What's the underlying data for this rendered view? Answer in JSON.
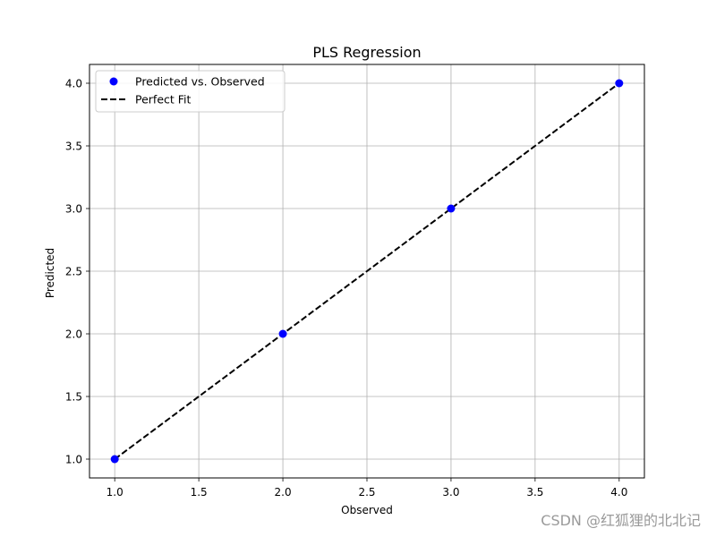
{
  "chart_data": {
    "type": "scatter",
    "title": "PLS Regression",
    "xlabel": "Observed",
    "ylabel": "Predicted",
    "xlim": [
      0.85,
      4.15
    ],
    "ylim": [
      0.85,
      4.15
    ],
    "xticks": [
      1.0,
      1.5,
      2.0,
      2.5,
      3.0,
      3.5,
      4.0
    ],
    "yticks": [
      1.0,
      1.5,
      2.0,
      2.5,
      3.0,
      3.5,
      4.0
    ],
    "xtick_labels": [
      "1.0",
      "1.5",
      "2.0",
      "2.5",
      "3.0",
      "3.5",
      "4.0"
    ],
    "ytick_labels": [
      "1.0",
      "1.5",
      "2.0",
      "2.5",
      "3.0",
      "3.5",
      "4.0"
    ],
    "grid": true,
    "legend_position": "top-left",
    "series": [
      {
        "name": "Predicted vs. Observed",
        "kind": "scatter",
        "color": "#0000ff",
        "x": [
          1,
          2,
          3,
          4
        ],
        "y": [
          1,
          2,
          3,
          4
        ]
      },
      {
        "name": "Perfect Fit",
        "kind": "line",
        "style": "dashed",
        "color": "#000000",
        "x": [
          1,
          4
        ],
        "y": [
          1,
          4
        ]
      }
    ]
  },
  "watermark": "CSDN @红狐狸的北北记"
}
